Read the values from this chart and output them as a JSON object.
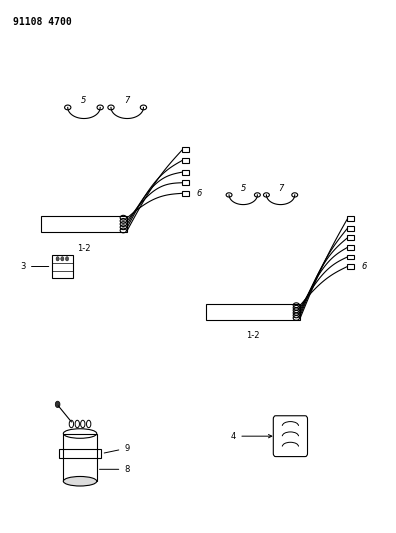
{
  "bg_color": "#ffffff",
  "line_color": "#000000",
  "part_number": "91108 4700"
}
